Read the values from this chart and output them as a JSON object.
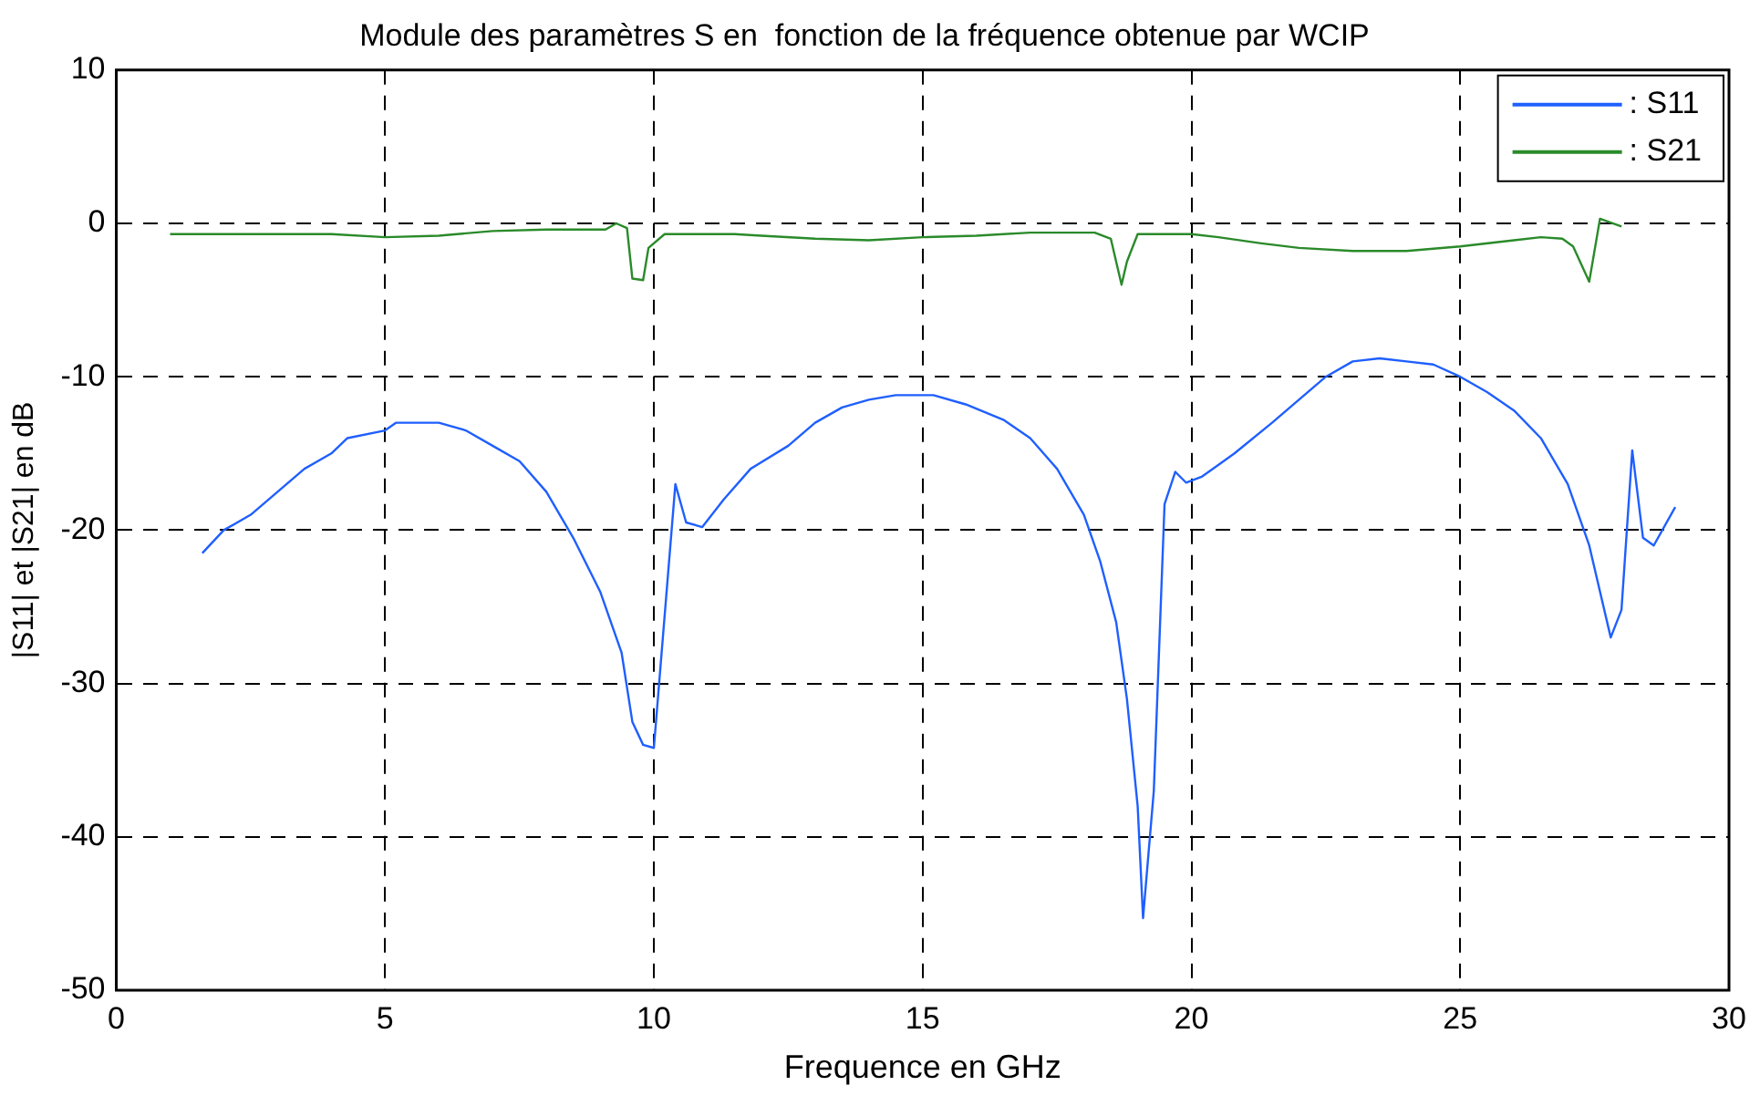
{
  "chart_data": {
    "type": "line",
    "title": "Module des paramètres S en  fonction de la fréquence obtenue par WCIP",
    "xlabel": "Frequence en GHz",
    "ylabel": "|S11| et |S21| en dB",
    "xlim": [
      0,
      30
    ],
    "xticks": [
      0,
      5,
      10,
      15,
      20,
      25,
      30
    ],
    "ylim": [
      -50,
      10
    ],
    "yticks": [
      -50,
      -40,
      -30,
      -20,
      -10,
      0,
      10
    ],
    "grid": true,
    "legend": "top right",
    "marker": "none",
    "line_style": "solid",
    "series": [
      {
        "name": ": S11",
        "color": "#1f5fff",
        "x": [
          1.6,
          2.0,
          2.5,
          3,
          3.5,
          4,
          4.3,
          5,
          5.2,
          6,
          6.5,
          7,
          7.5,
          8,
          8.5,
          9,
          9.4,
          9.6,
          9.8,
          10.0,
          10.4,
          10.6,
          10.9,
          11.3,
          11.8,
          12.5,
          13,
          13.5,
          14,
          14.5,
          15.2,
          15.8,
          16.5,
          17,
          17.5,
          18,
          18.3,
          18.6,
          18.8,
          19.0,
          19.1,
          19.3,
          19.5,
          19.7,
          19.9,
          20.2,
          20.8,
          21.5,
          22,
          22.5,
          23,
          23.5,
          24,
          24.5,
          25,
          25.5,
          26,
          26.5,
          27,
          27.4,
          27.6,
          27.8,
          28.0,
          28.2,
          28.4,
          28.6,
          29
        ],
        "values": [
          -21.5,
          -20,
          -19,
          -17.5,
          -16,
          -15,
          -14,
          -13.5,
          -13,
          -13,
          -13.5,
          -14.5,
          -15.5,
          -17.5,
          -20.5,
          -24,
          -28,
          -32.5,
          -34,
          -34.2,
          -17,
          -19.5,
          -19.8,
          -18,
          -16,
          -14.5,
          -13,
          -12,
          -11.5,
          -11.2,
          -11.2,
          -11.8,
          -12.8,
          -14,
          -16,
          -19,
          -22,
          -26,
          -31,
          -38,
          -45.3,
          -37,
          -18.3,
          -16.2,
          -16.9,
          -16.5,
          -15,
          -13,
          -11.5,
          -10,
          -9,
          -8.8,
          -9,
          -9.2,
          -10,
          -11,
          -12.2,
          -14,
          -17,
          -21,
          -24,
          -27,
          -25.2,
          -14.8,
          -20.5,
          -21,
          -18.5
        ]
      },
      {
        "name": ": S21",
        "color": "#2a8a2a",
        "x": [
          1,
          4,
          5,
          6,
          7,
          8,
          9.1,
          9.3,
          9.5,
          9.6,
          9.8,
          9.9,
          10.2,
          11.5,
          12,
          13,
          14,
          15,
          16,
          17,
          18.2,
          18.5,
          18.7,
          18.8,
          19,
          20,
          20.5,
          21.3,
          22,
          23,
          24,
          25,
          26,
          26.5,
          26.9,
          27.1,
          27.4,
          27.6,
          28.0
        ],
        "values": [
          -0.7,
          -0.7,
          -0.9,
          -0.8,
          -0.5,
          -0.4,
          -0.4,
          0,
          -0.3,
          -3.6,
          -3.7,
          -1.6,
          -0.7,
          -0.7,
          -0.8,
          -1,
          -1.1,
          -0.9,
          -0.8,
          -0.6,
          -0.6,
          -1,
          -4,
          -2.5,
          -0.7,
          -0.7,
          -0.9,
          -1.3,
          -1.6,
          -1.8,
          -1.8,
          -1.5,
          -1.1,
          -0.9,
          -1,
          -1.5,
          -3.8,
          0.3,
          -0.2
        ]
      }
    ]
  }
}
